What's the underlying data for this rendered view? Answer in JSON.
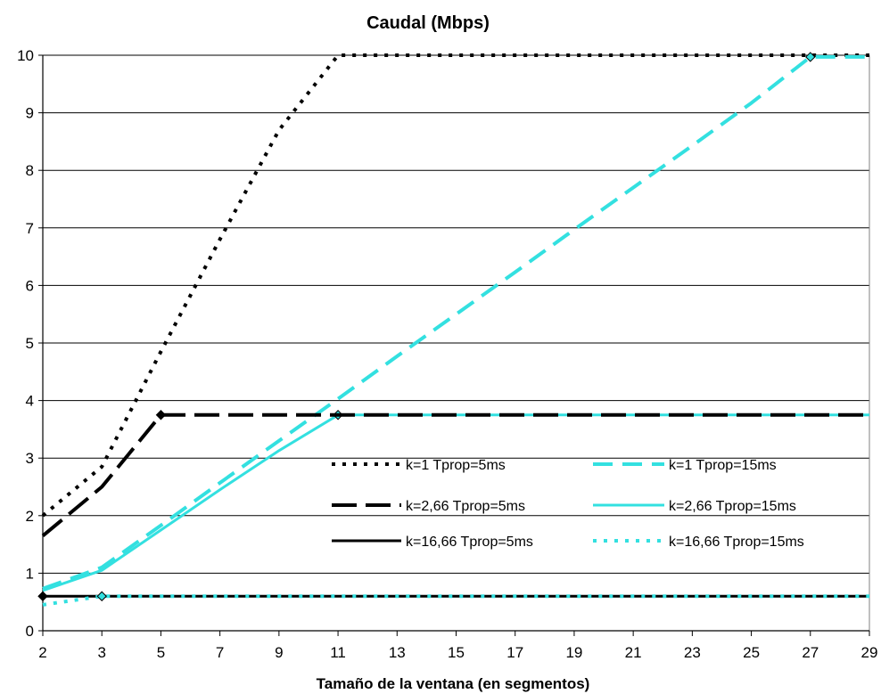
{
  "chart_data": {
    "type": "line",
    "title": "Caudal (Mbps)",
    "xlabel": "Tamaño de la ventana (en segmentos)",
    "ylabel": "",
    "categories": [
      "2",
      "3",
      "5",
      "7",
      "9",
      "11",
      "13",
      "15",
      "17",
      "19",
      "21",
      "23",
      "25",
      "27",
      "29"
    ],
    "ylim": [
      0,
      10
    ],
    "yticks": [
      "0",
      "1",
      "2",
      "3",
      "4",
      "5",
      "6",
      "7",
      "8",
      "9",
      "10"
    ],
    "grid": "horizontal",
    "legend_position": "bottom-right",
    "series": [
      {
        "name": "k=1 Tprop=5ms",
        "color": "#000000",
        "style": "dotted",
        "values": [
          2.0,
          2.85,
          4.85,
          6.8,
          8.7,
          10.0,
          10.0,
          10.0,
          10.0,
          10.0,
          10.0,
          10.0,
          10.0,
          10.0,
          10.0
        ],
        "markers": []
      },
      {
        "name": "k=1 Tprop=15ms",
        "color": "#33e0e0",
        "style": "dashed",
        "values": [
          0.73,
          1.1,
          1.83,
          2.57,
          3.3,
          4.03,
          4.77,
          5.5,
          6.23,
          6.97,
          7.7,
          8.43,
          9.17,
          9.97,
          9.97
        ],
        "markers": [
          13
        ]
      },
      {
        "name": "k=2,66 Tprop=5ms",
        "color": "#000000",
        "style": "longdash",
        "values": [
          1.65,
          2.5,
          3.75,
          3.75,
          3.75,
          3.75,
          3.75,
          3.75,
          3.75,
          3.75,
          3.75,
          3.75,
          3.75,
          3.75,
          3.75
        ],
        "markers": [
          2
        ]
      },
      {
        "name": "k=2,66 Tprop=15ms",
        "color": "#33e0e0",
        "style": "solid",
        "values": [
          0.7,
          1.05,
          1.75,
          2.45,
          3.13,
          3.75,
          3.75,
          3.75,
          3.75,
          3.75,
          3.75,
          3.75,
          3.75,
          3.75,
          3.75
        ],
        "markers": [
          5
        ]
      },
      {
        "name": "k=16,66 Tprop=5ms",
        "color": "#000000",
        "style": "solid",
        "values": [
          0.6,
          0.6,
          0.6,
          0.6,
          0.6,
          0.6,
          0.6,
          0.6,
          0.6,
          0.6,
          0.6,
          0.6,
          0.6,
          0.6,
          0.6
        ],
        "markers": [
          0
        ]
      },
      {
        "name": "k=16,66 Tprop=15ms",
        "color": "#33e0e0",
        "style": "dotted",
        "values": [
          0.45,
          0.6,
          0.6,
          0.6,
          0.6,
          0.6,
          0.6,
          0.6,
          0.6,
          0.6,
          0.6,
          0.6,
          0.6,
          0.6,
          0.6
        ],
        "markers": [
          1
        ]
      }
    ]
  }
}
